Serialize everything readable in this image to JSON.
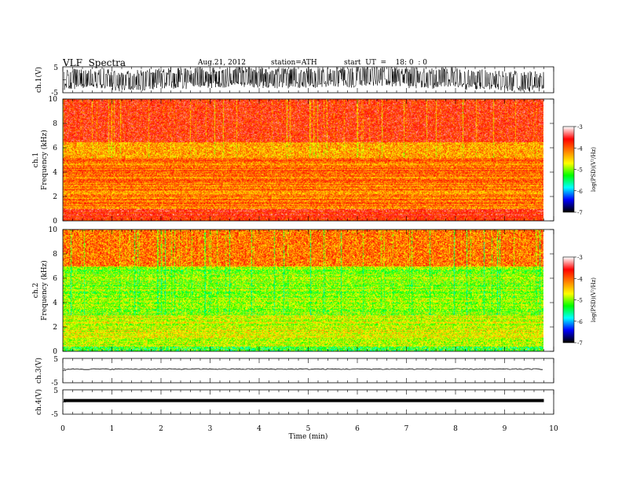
{
  "header": {
    "title": "VLF  Spectra",
    "date": "Aug.21, 2012",
    "station": "station=ATH",
    "start": "start  UT  =    18: 0  : 0"
  },
  "chart_data": [
    {
      "type": "line",
      "panel": "ch1-waveform",
      "ylabel": "ch.1(V)",
      "yticks": [
        "5",
        "-5"
      ],
      "ylim": [
        -5,
        5
      ],
      "xlim": [
        0,
        10
      ],
      "series": [
        {
          "x_range": [
            0,
            9.8
          ],
          "y_band": [
            -5,
            5
          ]
        }
      ]
    },
    {
      "type": "heatmap",
      "panel": "ch1-spectrogram",
      "ylabel": "ch.1\nFrequency  (kHz)",
      "ylabel_line1": "ch.1",
      "ylabel_line2": "Frequency  (kHz)",
      "ylim": [
        0,
        10
      ],
      "yticks": [
        "0",
        "2",
        "4",
        "6",
        "8",
        "10"
      ],
      "xlim": [
        0,
        10
      ],
      "data_x_end": 9.8,
      "colorbar": {
        "label": "log(PSD)(V²/Hz)",
        "ticks": [
          "-3",
          "-4",
          "-5",
          "-6",
          "-7"
        ],
        "range": [
          -7,
          -3
        ]
      }
    },
    {
      "type": "heatmap",
      "panel": "ch2-spectrogram",
      "ylabel": "ch.2\nFrequency  (kHz)",
      "ylabel_line1": "ch.2",
      "ylabel_line2": "Frequency  (kHz)",
      "ylim": [
        0,
        10
      ],
      "yticks": [
        "0",
        "2",
        "4",
        "6",
        "8",
        "10"
      ],
      "xlim": [
        0,
        10
      ],
      "data_x_end": 9.8,
      "colorbar": {
        "label": "log(PSD)(V²/Hz)",
        "ticks": [
          "-3",
          "-4",
          "-5",
          "-6",
          "-7"
        ],
        "range": [
          -7,
          -3
        ]
      }
    },
    {
      "type": "line",
      "panel": "ch3-waveform",
      "ylabel": "ch.3(V)",
      "yticks": [
        "5",
        "-5"
      ],
      "ylim": [
        -5,
        5
      ],
      "xlim": [
        0,
        10
      ]
    },
    {
      "type": "line",
      "panel": "ch4-waveform",
      "ylabel": "ch.4(V)",
      "yticks": [
        "5",
        "-5"
      ],
      "ylim": [
        -5,
        5
      ],
      "xlim": [
        0,
        10
      ],
      "xlabel": "Time  (min)",
      "xticks": [
        "0",
        "1",
        "2",
        "3",
        "4",
        "5",
        "6",
        "7",
        "8",
        "9",
        "10"
      ]
    }
  ],
  "colors": {
    "axis": "#000000",
    "colormap": [
      "#000000",
      "#0000ff",
      "#00ffff",
      "#00ff00",
      "#ffff00",
      "#ff8000",
      "#ff0000",
      "#ffffff"
    ]
  }
}
